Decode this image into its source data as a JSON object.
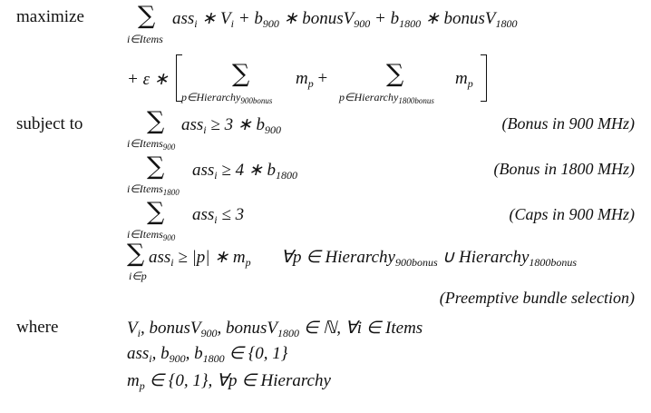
{
  "labels": {
    "maximize": "maximize",
    "subject_to": "subject to",
    "where": "where"
  },
  "objective": {
    "sum_index": "i∈Items",
    "term1": "ass",
    "term1_sub": "i",
    "term1_rest": " ∗ V",
    "term1_rest_sub": "i",
    "term2": " + b",
    "term2_sub": "900",
    "term2_rest": " ∗ bonusV",
    "term2_rest_sub": "900",
    "term3": " + b",
    "term3_sub": "1800",
    "term3_rest": " ∗ bonusV",
    "term3_rest_sub": "1800",
    "line2_prefix": "+ ε ∗",
    "sum_a_index": "p∈Hierarchy",
    "sum_a_index_sub": "900bonus",
    "sum_a_term": "m",
    "sum_a_term_sub": "p",
    "plus": "+",
    "sum_b_index": "p∈Hierarchy",
    "sum_b_index_sub": "1800bonus",
    "sum_b_term": "m",
    "sum_b_term_sub": "p"
  },
  "constraints": [
    {
      "sum_index": "i∈Items",
      "sum_index_sub": "900",
      "expr": "ass",
      "expr_sub": "i",
      "rel": " ≥ 3 ∗ b",
      "rel_sub": "900",
      "tag": "(Bonus in 900 MHz)"
    },
    {
      "sum_index": "i∈Items",
      "sum_index_sub": "1800",
      "expr": "ass",
      "expr_sub": "i",
      "rel": " ≥ 4 ∗ b",
      "rel_sub": "1800",
      "tag": "(Bonus in 1800 MHz)"
    },
    {
      "sum_index": "i∈Items",
      "sum_index_sub": "900",
      "expr": "ass",
      "expr_sub": "i",
      "rel": " ≤ 3",
      "rel_sub": "",
      "tag": "(Caps in 900 MHz)"
    },
    {
      "sum_index": "i∈p",
      "expr": "ass",
      "expr_sub": "i",
      "rel": " ≥ |p| ∗ m",
      "rel_sub": "p",
      "forall": "∀p ∈ Hierarchy",
      "forall_sub1": "900bonus",
      "union": " ∪ Hierarchy",
      "forall_sub2": "1800bonus",
      "tag": "(Preemptive bundle selection)"
    }
  ],
  "where": [
    {
      "a": "V",
      "a_sub": "i",
      "b": ", bonusV",
      "b_sub": "900",
      "c": ", bonusV",
      "c_sub": "1800",
      "d": " ∈ ℕ,    ∀i ∈ Items"
    },
    {
      "a": "ass",
      "a_sub": "i",
      "b": ", b",
      "b_sub": "900",
      "c": ", b",
      "c_sub": "1800",
      "d": " ∈ {0, 1}"
    },
    {
      "a": "m",
      "a_sub": "p",
      "b": " ∈ {0, 1},    ∀p ∈ Hierarchy"
    }
  ]
}
